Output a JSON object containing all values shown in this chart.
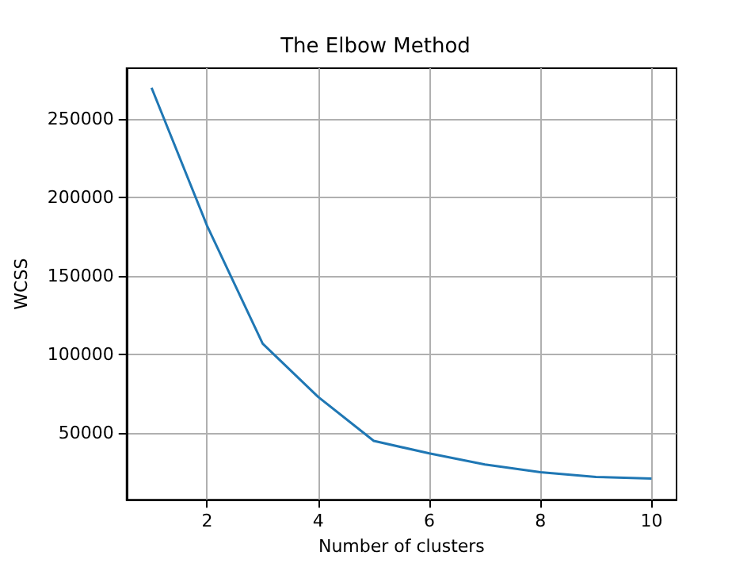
{
  "chart_data": {
    "type": "line",
    "title": "The Elbow Method",
    "xlabel": "Number of clusters",
    "ylabel": "WCSS",
    "x": [
      1,
      2,
      3,
      4,
      5,
      6,
      7,
      8,
      9,
      10
    ],
    "series": [
      {
        "color": "#1f77b4",
        "values": [
          270000,
          182000,
          107000,
          73000,
          45000,
          37000,
          30000,
          25000,
          22000,
          21000
        ]
      }
    ],
    "xlim": [
      0.55,
      10.45
    ],
    "xticks": [
      2,
      4,
      6,
      8,
      10
    ],
    "ylim": [
      7500,
      282500
    ],
    "yticks": [
      50000,
      100000,
      150000,
      200000,
      250000
    ],
    "grid": true,
    "marker": "none",
    "line_style": "solid"
  }
}
